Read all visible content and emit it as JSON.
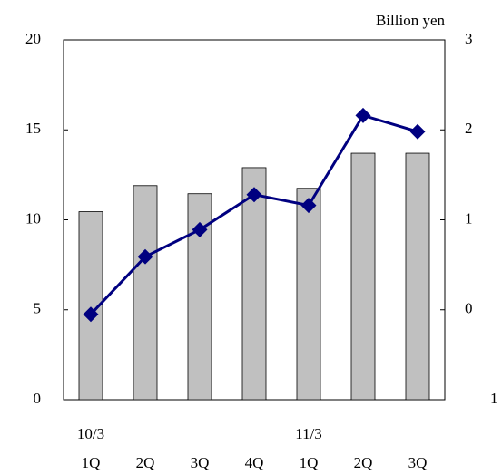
{
  "chart_data": {
    "type": "bar-line",
    "y2_label": "Billion yen",
    "categories": [
      "1Q",
      "2Q",
      "3Q",
      "4Q",
      "1Q",
      "2Q",
      "3Q"
    ],
    "period_labels": [
      "10/3",
      null,
      null,
      null,
      "11/3",
      null,
      null
    ],
    "series": [
      {
        "type": "bar",
        "color": "#c0c0c0",
        "values": [
          10.45,
          11.9,
          11.45,
          12.9,
          11.75,
          13.7,
          13.7
        ]
      },
      {
        "type": "line",
        "axis": "y2",
        "color": "#000080",
        "values": [
          -0.05,
          0.59,
          0.89,
          1.28,
          1.16,
          2.16,
          1.98
        ]
      }
    ],
    "ylim": [
      0,
      20
    ],
    "yticks": [
      0,
      5,
      10,
      15,
      20
    ],
    "y2lim": [
      -1,
      3
    ],
    "y2ticks": [
      {
        "value": -1,
        "label": "1"
      },
      0,
      1,
      2,
      3
    ]
  }
}
